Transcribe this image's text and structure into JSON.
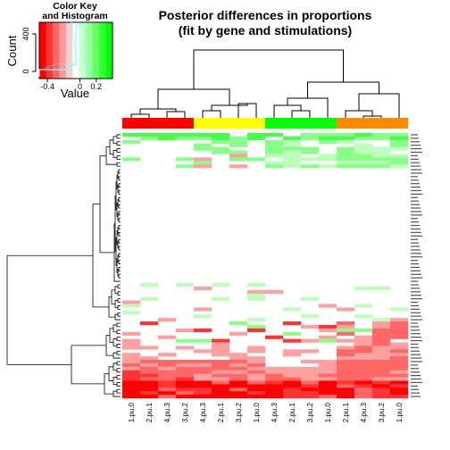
{
  "chart_data": {
    "type": "heatmap",
    "title": [
      "Posterior differences in proportions",
      "(fit by gene and stimulations)"
    ],
    "columns": [
      "1.pu.0",
      "2.pu.1",
      "4.pu.3",
      "3.pu.2",
      "4.pu.3",
      "2.pu.1",
      "3.pu.2",
      "1.pu.0",
      "4.pu.3",
      "2.pu.1",
      "3.pu.2",
      "1.pu.0",
      "2.pu.1",
      "4.pu.3",
      "3.pu.2",
      "1.pu.0"
    ],
    "column_group_colors": [
      "#ff0000",
      "#ffff00",
      "#00ff00",
      "#ff8c00"
    ],
    "color_key": {
      "title": [
        "Color Key",
        "and Histogram"
      ],
      "xlabel": "Value",
      "ylabel": "Count",
      "x_ticks": [
        "-0.4",
        "0",
        "0.2"
      ],
      "y_ticks": [
        "0",
        "400"
      ],
      "colors": [
        "#ff0000",
        "#ff3333",
        "#ff6666",
        "#ff9999",
        "#ffcccc",
        "#ffffff",
        "#ccffcc",
        "#99ff99",
        "#66ff66",
        "#33ff33",
        "#00ff00"
      ],
      "range": [
        -0.5,
        0.4
      ]
    },
    "row_count": 76,
    "col_count": 16
  }
}
